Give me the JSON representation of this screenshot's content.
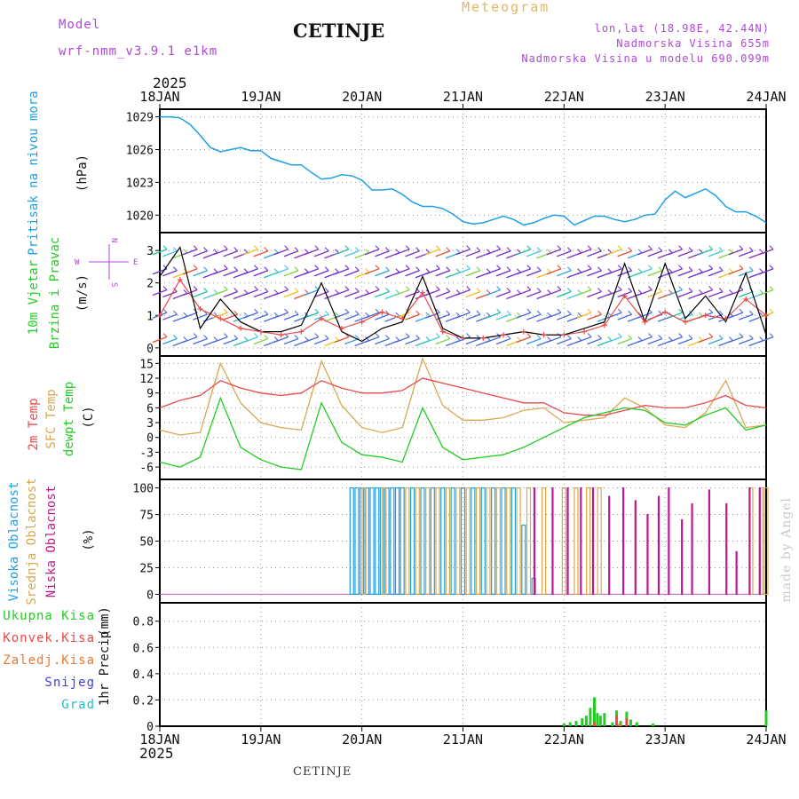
{
  "header": {
    "model_label": "Model",
    "model_name": "wrf-nmm_v3.9.1 e1km",
    "station": "CETINJE",
    "product": "Meteogram",
    "coords": "lon,lat (18.98E, 42.44N)",
    "elevation": "Nadmorska Visina 655m",
    "model_elevation": "Nadmorska Visina u modelu 690.099m"
  },
  "footer_station": "CETINJE",
  "watermark": "made by Angel",
  "time_axis": {
    "year": "2025",
    "days": [
      "18JAN",
      "19JAN",
      "20JAN",
      "21JAN",
      "22JAN",
      "23JAN",
      "24JAN"
    ]
  },
  "colors": {
    "pressure": "#1ea0e6",
    "t2m": "#e84a4a",
    "tsfc": "#d8a850",
    "dewpt": "#22cc22",
    "high_cloud": "#1ea0e6",
    "mid_cloud": "#d8a850",
    "low_cloud": "#c01890",
    "total_precip": "#22cc22",
    "conv_precip": "#e84a4a",
    "frozen_precip": "#e87830",
    "snow": "#4040e0",
    "hail": "#20c0c0",
    "wind_speed": "#000000",
    "gust": "#e84a4a",
    "grid": "#999999"
  },
  "chart_data": [
    {
      "type": "line",
      "panel": "pressure",
      "ylabel_main": "Pritisak na nivou mora",
      "unit": "(hPa)",
      "yticks": [
        1020,
        1023,
        1026,
        1029
      ],
      "ylim": [
        1018.4,
        1029.7
      ],
      "x": [
        0,
        0.1,
        0.2,
        0.3,
        0.4,
        0.5,
        0.6,
        0.7,
        0.8,
        0.9,
        1.0,
        1.1,
        1.2,
        1.3,
        1.4,
        1.5,
        1.6,
        1.7,
        1.8,
        1.9,
        2.0,
        2.1,
        2.2,
        2.3,
        2.4,
        2.5,
        2.6,
        2.7,
        2.8,
        2.9,
        3.0,
        3.1,
        3.2,
        3.3,
        3.4,
        3.5,
        3.6,
        3.7,
        3.8,
        3.9,
        4.0,
        4.1,
        4.2,
        4.3,
        4.4,
        4.5,
        4.6,
        4.7,
        4.8,
        4.9,
        5.0,
        5.1,
        5.2,
        5.3,
        5.4,
        5.5,
        5.6,
        5.7,
        5.8,
        5.9,
        6.0
      ],
      "series": [
        {
          "values": [
            1029.0,
            1029.0,
            1028.9,
            1028.3,
            1027.3,
            1026.2,
            1025.8,
            1026.0,
            1026.2,
            1025.9,
            1025.9,
            1025.2,
            1024.9,
            1024.6,
            1024.6,
            1023.9,
            1023.3,
            1023.4,
            1023.7,
            1023.6,
            1023.2,
            1022.3,
            1022.3,
            1022.4,
            1021.9,
            1021.2,
            1020.8,
            1020.8,
            1020.6,
            1020.1,
            1019.4,
            1019.2,
            1019.3,
            1019.6,
            1019.9,
            1019.6,
            1019.1,
            1019.3,
            1019.7,
            1020.0,
            1019.9,
            1019.1,
            1019.5,
            1019.9,
            1019.9,
            1019.6,
            1019.4,
            1019.6,
            1020.0,
            1020.1,
            1021.4,
            1022.2,
            1021.6,
            1022.0,
            1022.4,
            1021.8,
            1020.8,
            1020.3,
            1020.3,
            1019.9,
            1019.3
          ]
        }
      ]
    },
    {
      "type": "line",
      "panel": "wind",
      "ylabel_main": "10m Vjetar",
      "ylabel_sub": "Brzina i Pravac",
      "unit": "(m/s)",
      "compass": {
        "n": "N",
        "e": "E",
        "w": "W",
        "s": "S"
      },
      "yticks": [
        0,
        1,
        2,
        3
      ],
      "ylim": [
        -0.25,
        3.55
      ],
      "x": [
        0,
        0.2,
        0.4,
        0.6,
        0.8,
        1.0,
        1.2,
        1.4,
        1.6,
        1.8,
        2.0,
        2.2,
        2.4,
        2.6,
        2.8,
        3.0,
        3.2,
        3.4,
        3.6,
        3.8,
        4.0,
        4.2,
        4.4,
        4.6,
        4.8,
        5.0,
        5.2,
        5.4,
        5.6,
        5.8,
        6.0
      ],
      "series": [
        {
          "name": "speed",
          "values": [
            2.2,
            3.1,
            0.6,
            1.5,
            0.8,
            0.5,
            0.5,
            0.7,
            2.0,
            0.5,
            0.2,
            0.6,
            0.8,
            2.2,
            0.6,
            0.3,
            0.3,
            0.4,
            0.5,
            0.4,
            0.4,
            0.6,
            0.8,
            2.6,
            0.8,
            2.6,
            0.9,
            1.6,
            0.8,
            2.3,
            0.4
          ]
        },
        {
          "name": "gust",
          "values": [
            1.0,
            2.1,
            1.2,
            0.9,
            0.6,
            0.5,
            0.4,
            0.5,
            0.9,
            0.6,
            0.8,
            1.1,
            0.9,
            1.7,
            0.5,
            0.3,
            0.3,
            0.4,
            0.5,
            0.4,
            0.4,
            0.5,
            0.7,
            1.6,
            0.8,
            1.1,
            0.8,
            1.0,
            0.9,
            1.5,
            1.0
          ]
        }
      ]
    },
    {
      "type": "line",
      "panel": "temperature",
      "ylabel_lines": [
        "2m Temp",
        "SFC Temp",
        "dewpt Temp"
      ],
      "unit": "(C)",
      "yticks": [
        -6,
        -3,
        0,
        3,
        6,
        9,
        12,
        15
      ],
      "ylim": [
        -8.5,
        16.5
      ],
      "x": [
        0,
        0.2,
        0.4,
        0.6,
        0.8,
        1.0,
        1.2,
        1.4,
        1.6,
        1.8,
        2.0,
        2.2,
        2.4,
        2.6,
        2.8,
        3.0,
        3.2,
        3.4,
        3.6,
        3.8,
        4.0,
        4.2,
        4.4,
        4.6,
        4.8,
        5.0,
        5.2,
        5.4,
        5.6,
        5.8,
        6.0
      ],
      "series": [
        {
          "name": "2m Temp",
          "values": [
            6.0,
            7.5,
            8.5,
            11.5,
            10.0,
            9.0,
            8.5,
            9.0,
            11.5,
            10.0,
            9.0,
            9.0,
            9.5,
            12.0,
            11.0,
            10.0,
            9.0,
            8.0,
            7.0,
            7.0,
            5.0,
            4.5,
            4.5,
            5.5,
            6.5,
            6.0,
            6.0,
            7.0,
            8.5,
            6.5,
            6.0
          ]
        },
        {
          "name": "SFC Temp",
          "values": [
            1.5,
            0.5,
            1.0,
            15.0,
            7.0,
            3.0,
            2.0,
            1.5,
            15.5,
            6.5,
            2.0,
            1.0,
            2.0,
            16.0,
            6.5,
            3.5,
            3.5,
            4.0,
            5.5,
            6.0,
            3.0,
            3.5,
            4.0,
            8.0,
            6.0,
            2.5,
            2.0,
            5.0,
            11.5,
            2.0,
            2.5
          ]
        },
        {
          "name": "dewpt Temp",
          "values": [
            -5.0,
            -6.0,
            -4.0,
            8.0,
            -2.0,
            -4.5,
            -6.0,
            -6.5,
            7.0,
            -1.0,
            -3.5,
            -4.0,
            -5.0,
            6.0,
            -2.0,
            -4.5,
            -4.0,
            -3.5,
            -2.0,
            0.0,
            2.0,
            4.0,
            5.0,
            6.0,
            5.5,
            3.0,
            2.5,
            4.5,
            6.0,
            1.5,
            2.5
          ]
        }
      ]
    },
    {
      "type": "bar",
      "panel": "cloud",
      "ylabel_lines": [
        "Visoka Oblacnost",
        "Srednja Oblacnost",
        "Niska Oblacnost"
      ],
      "unit": "(%)",
      "yticks": [
        0,
        25,
        50,
        75,
        100
      ],
      "ylim": [
        -8,
        108
      ],
      "series": [
        {
          "name": "Visoka Oblacnost",
          "values": [
            [
              1.9,
              100
            ],
            [
              1.95,
              100
            ],
            [
              2.0,
              100
            ],
            [
              2.05,
              100
            ],
            [
              2.1,
              100
            ],
            [
              2.15,
              100
            ],
            [
              2.2,
              100
            ],
            [
              2.25,
              100
            ],
            [
              2.3,
              100
            ],
            [
              2.35,
              100
            ],
            [
              2.4,
              100
            ],
            [
              2.5,
              100
            ],
            [
              2.6,
              100
            ],
            [
              2.7,
              100
            ],
            [
              2.8,
              100
            ],
            [
              2.9,
              100
            ],
            [
              3.0,
              100
            ],
            [
              3.1,
              100
            ],
            [
              3.2,
              100
            ],
            [
              3.3,
              100
            ],
            [
              3.4,
              100
            ],
            [
              3.5,
              100
            ],
            [
              3.6,
              65
            ],
            [
              3.7,
              15
            ]
          ]
        },
        {
          "name": "Srednja Oblacnost",
          "values": [
            [
              2.02,
              100
            ],
            [
              2.22,
              100
            ],
            [
              2.45,
              100
            ],
            [
              2.55,
              100
            ],
            [
              2.65,
              100
            ],
            [
              2.75,
              100
            ],
            [
              2.85,
              100
            ],
            [
              2.95,
              100
            ],
            [
              3.05,
              100
            ],
            [
              3.15,
              100
            ],
            [
              3.25,
              100
            ],
            [
              3.35,
              100
            ],
            [
              3.45,
              100
            ],
            [
              3.55,
              100
            ],
            [
              3.65,
              100
            ],
            [
              3.8,
              100
            ],
            [
              4.0,
              100
            ],
            [
              4.12,
              100
            ],
            [
              4.24,
              100
            ],
            [
              4.35,
              100
            ],
            [
              5.85,
              100
            ],
            [
              5.95,
              100
            ],
            [
              6.0,
              100
            ]
          ]
        },
        {
          "name": "Niska Oblacnost",
          "values": [
            [
              3.72,
              100
            ],
            [
              3.9,
              100
            ],
            [
              4.05,
              100
            ],
            [
              4.18,
              100
            ],
            [
              4.3,
              100
            ],
            [
              4.46,
              92
            ],
            [
              4.6,
              100
            ],
            [
              4.72,
              88
            ],
            [
              4.84,
              75
            ],
            [
              4.95,
              92
            ],
            [
              5.05,
              100
            ],
            [
              5.18,
              70
            ],
            [
              5.28,
              85
            ],
            [
              5.45,
              98
            ],
            [
              5.62,
              85
            ],
            [
              5.72,
              40
            ],
            [
              5.85,
              100
            ],
            [
              5.95,
              100
            ]
          ]
        }
      ]
    },
    {
      "type": "bar",
      "panel": "precip",
      "ylabel_lines": [
        "1hr Precip",
        "(mm)"
      ],
      "legend": [
        "Ukupna Kisa",
        "Konvek.Kisa",
        "Zaledj.Kisa",
        "Snijeg",
        "Grad"
      ],
      "yticks": [
        0,
        0.2,
        0.4,
        0.6,
        0.8
      ],
      "ylim": [
        0,
        0.94
      ],
      "series": [
        {
          "name": "Ukupna Kisa",
          "values": [
            [
              4.0,
              0.02
            ],
            [
              4.06,
              0.03
            ],
            [
              4.12,
              0.04
            ],
            [
              4.18,
              0.06
            ],
            [
              4.22,
              0.08
            ],
            [
              4.26,
              0.14
            ],
            [
              4.3,
              0.22
            ],
            [
              4.33,
              0.1
            ],
            [
              4.36,
              0.08
            ],
            [
              4.4,
              0.1
            ],
            [
              4.48,
              0.03
            ],
            [
              4.52,
              0.12
            ],
            [
              4.56,
              0.04
            ],
            [
              4.62,
              0.11
            ],
            [
              4.66,
              0.05
            ],
            [
              4.72,
              0.03
            ],
            [
              4.88,
              0.02
            ],
            [
              6.0,
              0.12
            ]
          ]
        },
        {
          "name": "Konvek.Kisa",
          "values": [
            [
              4.52,
              0.08
            ],
            [
              4.62,
              0.06
            ],
            [
              4.3,
              0.03
            ]
          ]
        },
        {
          "name": "Zaledj.Kisa",
          "values": [
            [
              4.55,
              0.02
            ]
          ]
        }
      ]
    }
  ]
}
